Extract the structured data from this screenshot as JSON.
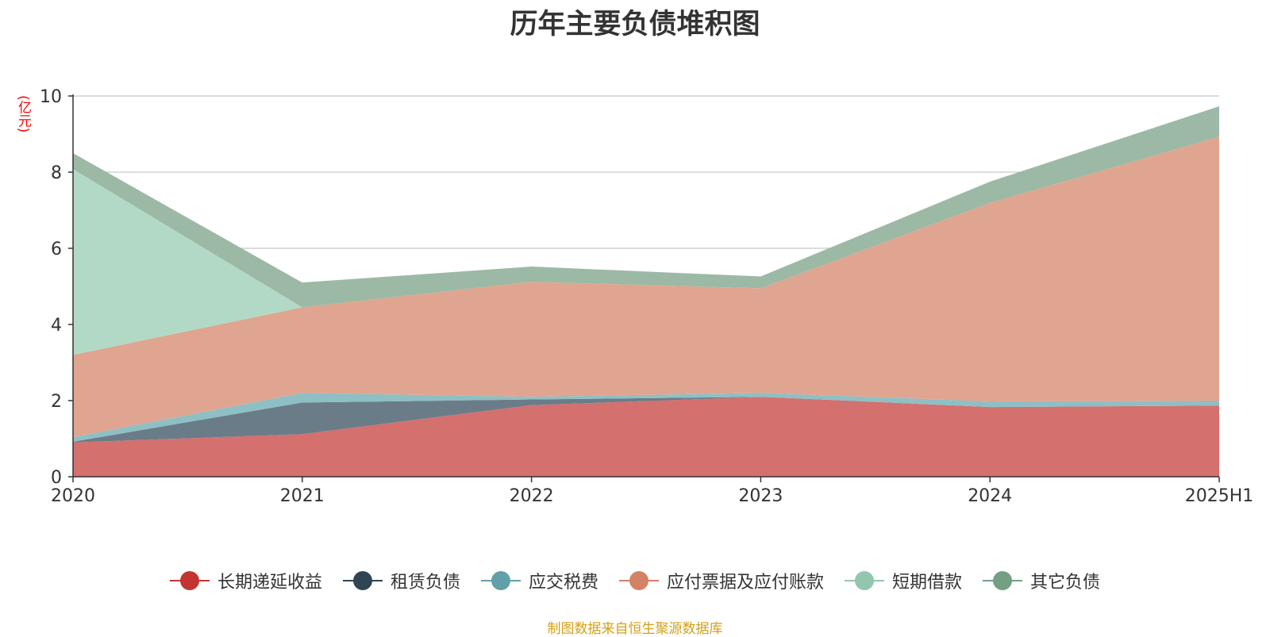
{
  "unit_label": "(亿元)",
  "source_note": "制图数据来自恒生聚源数据库",
  "chart_data": {
    "type": "area",
    "stacked": true,
    "title": "历年主要负债堆积图",
    "xlabel": "",
    "ylabel": "(亿元)",
    "x": [
      "2020",
      "2021",
      "2022",
      "2023",
      "2024",
      "2025H1"
    ],
    "ylim": [
      0,
      10
    ],
    "yticks": [
      0,
      2,
      4,
      6,
      8,
      10
    ],
    "grid": true,
    "legend_position": "bottom",
    "series": [
      {
        "name": "长期递延收益",
        "color": "#c23531",
        "fill": "#d4706e",
        "values": [
          0.9,
          1.12,
          1.88,
          2.1,
          1.83,
          1.87
        ]
      },
      {
        "name": "租赁负债",
        "color": "#2f4554",
        "fill": "#6b7c89",
        "values": [
          0.02,
          0.83,
          0.15,
          0.0,
          0.0,
          0.0
        ]
      },
      {
        "name": "应交税费",
        "color": "#61a0a8",
        "fill": "#8ebfc4",
        "values": [
          0.12,
          0.25,
          0.07,
          0.1,
          0.15,
          0.12
        ]
      },
      {
        "name": "应付票据及应付账款",
        "color": "#d48265",
        "fill": "#dfa590",
        "values": [
          2.16,
          2.25,
          3.02,
          2.75,
          5.21,
          6.94
        ]
      },
      {
        "name": "短期借款",
        "color": "#91c7ae",
        "fill": "#b2d9c6",
        "values": [
          4.88,
          0.0,
          0.0,
          0.0,
          0.0,
          0.0
        ]
      },
      {
        "name": "其它负债",
        "color": "#749f83",
        "fill": "#9cb9a5",
        "values": [
          0.42,
          0.65,
          0.4,
          0.31,
          0.56,
          0.8
        ]
      }
    ]
  }
}
